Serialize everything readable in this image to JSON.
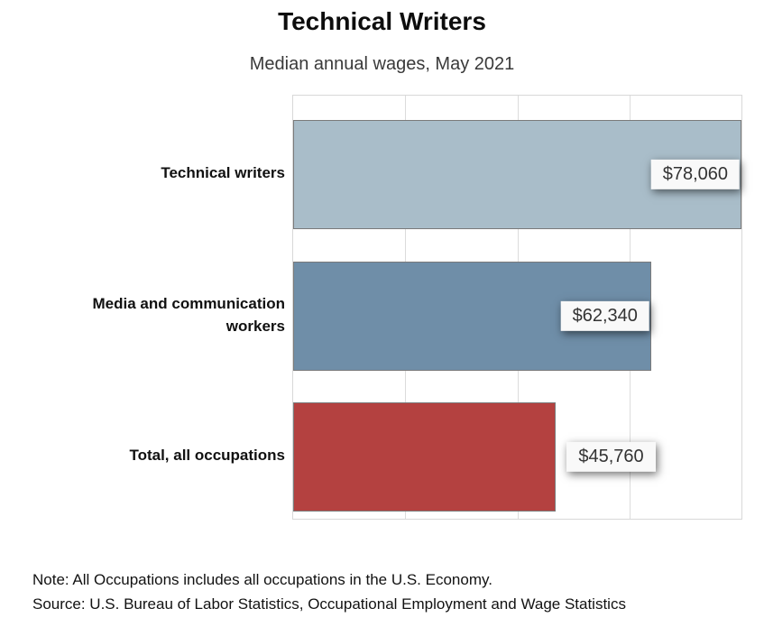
{
  "chart_data": {
    "type": "bar",
    "orientation": "horizontal",
    "title": "Technical Writers",
    "subtitle": "Median annual wages, May 2021",
    "categories": [
      "Technical writers",
      "Media and communication workers",
      "Total, all occupations"
    ],
    "values": [
      78060,
      62340,
      45760
    ],
    "value_labels": [
      "$78,060",
      "$62,340",
      "$45,760"
    ],
    "bar_colors": [
      "#a9bdc9",
      "#6f8ea8",
      "#b44140"
    ],
    "xlim": [
      0,
      78060
    ],
    "xlabel": "",
    "ylabel": "",
    "gridlines": "vertical at quarter intervals",
    "legend_position": "none"
  },
  "notes": {
    "note": "Note: All Occupations includes all occupations in the U.S. Economy.",
    "source": "Source: U.S. Bureau of Labor Statistics, Occupational Employment and Wage Statistics"
  },
  "colors": {
    "background": "#ffffff",
    "bar_border": "#7a7a7a",
    "plot_border": "#d8d8d8",
    "gridline": "#dcdcdc",
    "value_box_bg": "#f9f9f9",
    "value_text": "#333333",
    "subtitle_text": "#3a3a3a"
  }
}
